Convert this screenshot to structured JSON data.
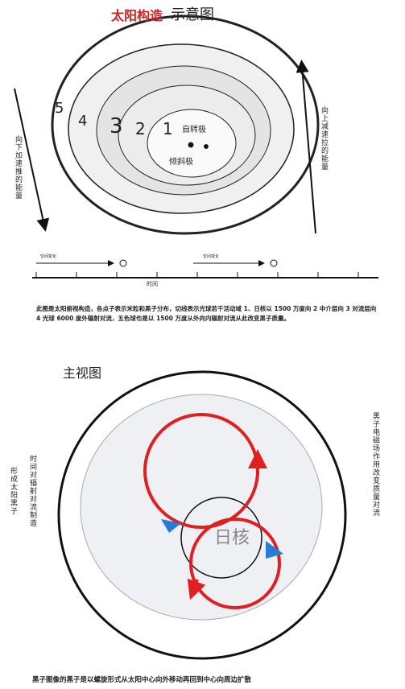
{
  "top_view": {
    "title_red": "太阳构造",
    "title_black": "示意图",
    "layer_labels": [
      "5",
      "4",
      "3",
      "2",
      "1"
    ],
    "rotation_pole": "自转极",
    "tilt_pole": "倾斜极",
    "left_arrow_label": "向下加速推的能量",
    "right_arrow_label": "向上减速拉的能量",
    "timeline": {
      "space_labels": [
        "空间变化",
        "空间变化"
      ],
      "axis_label": "时间"
    },
    "caption": "此图是太阳俯视构造，各点子表示米粒和黑子分布，切线表示光球若干活动域 1、日核以 1500 万度向 2 中介层向 3 对流层向 4 光球 6000 度外辐射对流，五色球也是以 1500 万度从外向内辐射对流从此改变黑子质量。"
  },
  "front_view": {
    "title": "主视图",
    "core": "日核",
    "left_labels": [
      "时间对辐射对流制造",
      "形成太阳黑子"
    ],
    "right_label": "黑子电磁场作用改变质量对流",
    "caption": "黑子图像的黑子是以螺旋形式从太阳中心向外移动再回到中心向周边扩散"
  }
}
